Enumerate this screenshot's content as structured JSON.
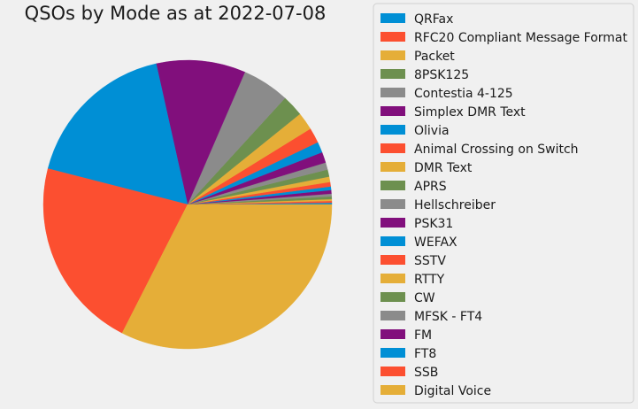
{
  "chart_data": {
    "type": "pie",
    "title": "QSOs by Mode as at 2022-07-08",
    "legend_position": "right",
    "start_angle_deg": 0,
    "direction": "counterclockwise",
    "slices": [
      {
        "label": "QRFax",
        "value": 0.2,
        "color": "#008fd5"
      },
      {
        "label": "RFC20 Compliant Message Format",
        "value": 0.2,
        "color": "#fc4f30"
      },
      {
        "label": "Packet",
        "value": 0.2,
        "color": "#e5ae38"
      },
      {
        "label": "8PSK125",
        "value": 0.3,
        "color": "#6d904f"
      },
      {
        "label": "Contestia 4-125",
        "value": 0.3,
        "color": "#8b8b8b"
      },
      {
        "label": "Simplex DMR Text",
        "value": 0.4,
        "color": "#810f7c"
      },
      {
        "label": "Olivia",
        "value": 0.4,
        "color": "#008fd5"
      },
      {
        "label": "Animal Crossing on Switch",
        "value": 0.5,
        "color": "#fc4f30"
      },
      {
        "label": "DMR Text",
        "value": 0.6,
        "color": "#e5ae38"
      },
      {
        "label": "APRS",
        "value": 0.8,
        "color": "#6d904f"
      },
      {
        "label": "Hellschreiber",
        "value": 0.8,
        "color": "#8b8b8b"
      },
      {
        "label": "PSK31",
        "value": 1.2,
        "color": "#810f7c"
      },
      {
        "label": "WEFAX",
        "value": 1.2,
        "color": "#008fd5"
      },
      {
        "label": "SSTV",
        "value": 1.7,
        "color": "#fc4f30"
      },
      {
        "label": "RTTY",
        "value": 2.0,
        "color": "#e5ae38"
      },
      {
        "label": "CW",
        "value": 2.4,
        "color": "#6d904f"
      },
      {
        "label": "MFSK - FT4",
        "value": 5.3,
        "color": "#8b8b8b"
      },
      {
        "label": "FM",
        "value": 10.0,
        "color": "#810f7c"
      },
      {
        "label": "FT8",
        "value": 17.5,
        "color": "#008fd5"
      },
      {
        "label": "SSB",
        "value": 21.5,
        "color": "#fc4f30"
      },
      {
        "label": "Digital Voice",
        "value": 32.5,
        "color": "#e5ae38"
      }
    ]
  }
}
